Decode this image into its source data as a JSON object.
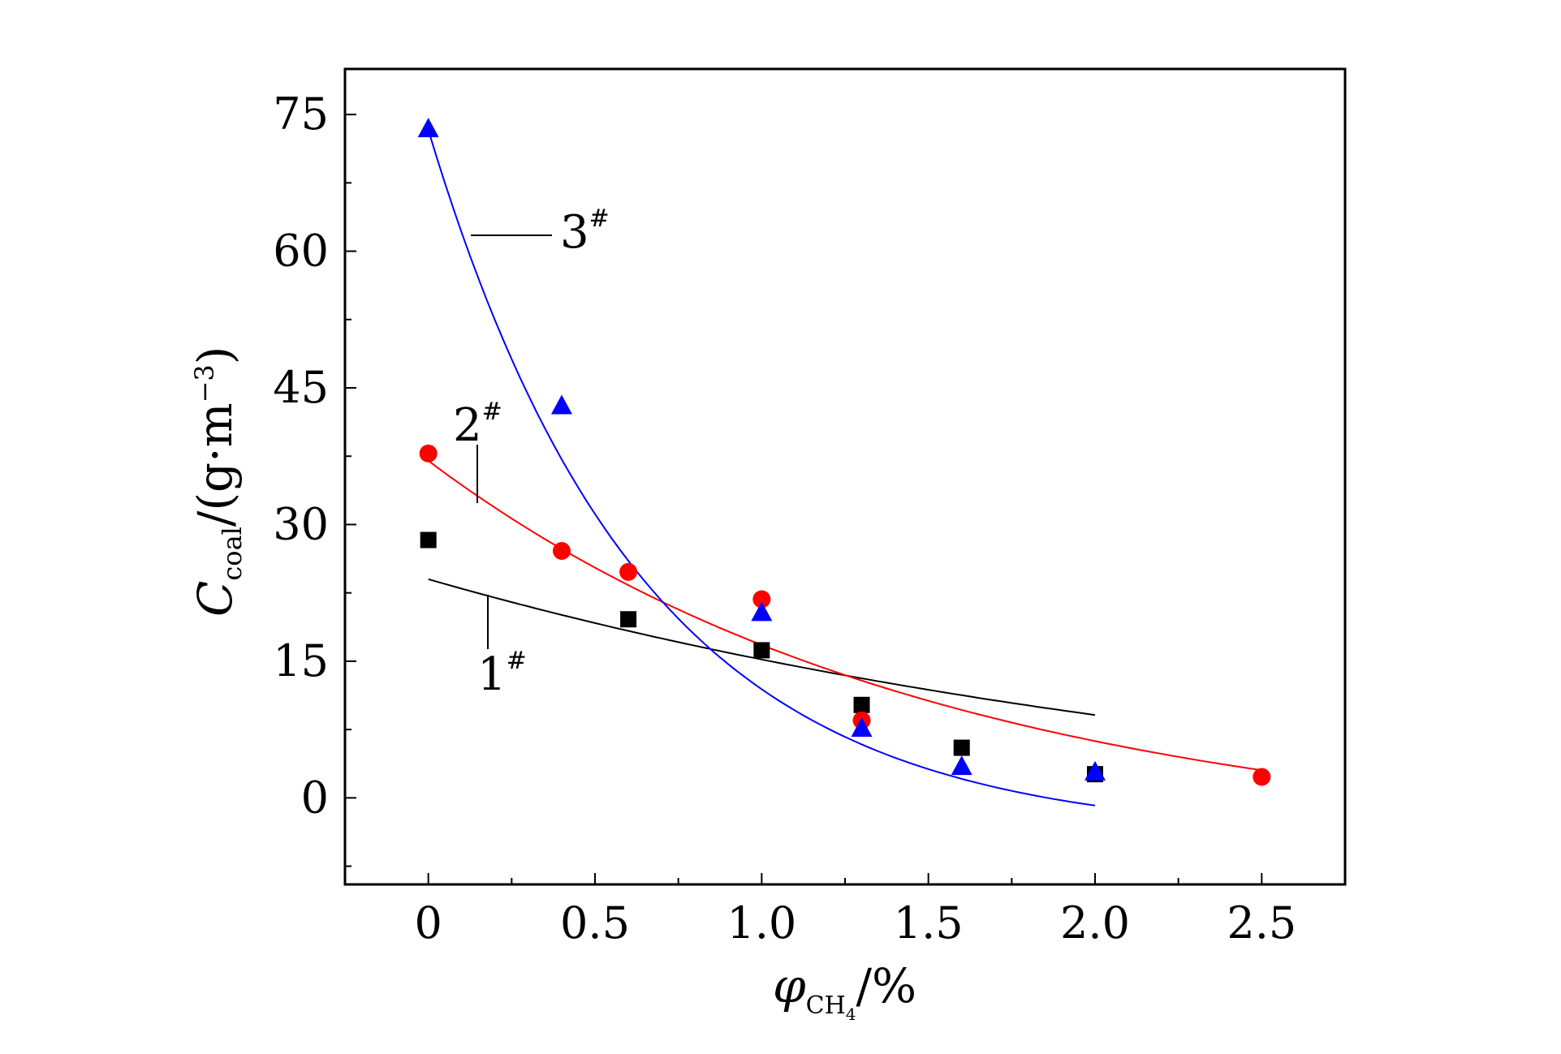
{
  "chart_data": {
    "type": "scatter",
    "title": "",
    "xlabel": {
      "main": "φ",
      "sub": "CH",
      "sub_index": "4",
      "suffix": "/%"
    },
    "ylabel": {
      "main": "C",
      "sub": "coal",
      "suffix": "/(g·m",
      "sup": "−3",
      "close": ")"
    },
    "xlim": [
      -0.25,
      2.75
    ],
    "ylim": [
      -9.5,
      80
    ],
    "xticks": [
      0,
      0.5,
      1.0,
      1.5,
      2.0,
      2.5
    ],
    "xtick_labels": [
      "0",
      "0.5",
      "1.0",
      "1.5",
      "2.0",
      "2.5"
    ],
    "yticks": [
      0,
      15,
      30,
      45,
      60,
      75
    ],
    "ytick_labels": [
      "0",
      "15",
      "30",
      "45",
      "60",
      "75"
    ],
    "grid": false,
    "legend": "none",
    "series": [
      {
        "name": "1",
        "name_sup": "#",
        "marker": "square",
        "color": "#000000",
        "x": [
          0,
          0.6,
          1.0,
          1.3,
          1.6,
          2.0
        ],
        "y": [
          28.3,
          19.6,
          16.2,
          10.2,
          5.5,
          2.6
        ],
        "fit": {
          "type": "exp",
          "a": 28.5,
          "b": 0.37,
          "c": -4.5,
          "x_range": [
            0,
            2.0
          ]
        }
      },
      {
        "name": "2",
        "name_sup": "#",
        "marker": "circle",
        "color": "#ff0000",
        "x": [
          0,
          0.4,
          0.6,
          1.0,
          1.3,
          2.5
        ],
        "y": [
          37.8,
          27.1,
          24.8,
          21.8,
          8.5,
          2.3
        ],
        "fit": {
          "type": "exp",
          "a": 42.3,
          "b": 0.65,
          "c": -5.3,
          "x_range": [
            0,
            2.5
          ]
        }
      },
      {
        "name": "3",
        "name_sup": "#",
        "marker": "triangle",
        "color": "#0000ff",
        "x": [
          0,
          0.4,
          1.0,
          1.3,
          1.6,
          2.0
        ],
        "y": [
          73.4,
          43.0,
          20.3,
          7.6,
          3.4,
          2.8
        ],
        "fit": {
          "type": "exp",
          "a": 77.5,
          "b": 1.57,
          "c": -4.2,
          "x_range": [
            0,
            2.0
          ]
        }
      }
    ]
  }
}
